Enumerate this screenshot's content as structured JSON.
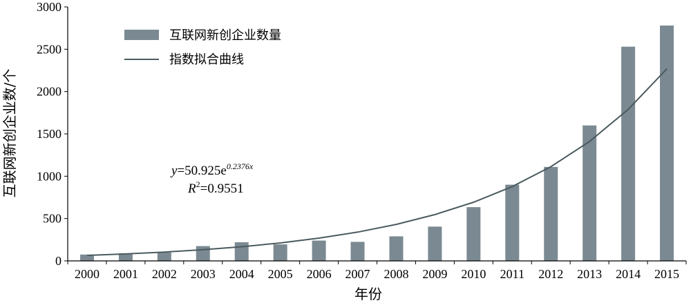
{
  "chart_data": {
    "type": "bar",
    "title": "",
    "xlabel": "年份",
    "ylabel": "互联网新创企业数/个",
    "ylim": [
      0,
      3000
    ],
    "yticks": [
      0,
      500,
      1000,
      1500,
      2000,
      2500,
      3000
    ],
    "categories": [
      "2000",
      "2001",
      "2002",
      "2003",
      "2004",
      "2005",
      "2006",
      "2007",
      "2008",
      "2009",
      "2010",
      "2011",
      "2012",
      "2013",
      "2014",
      "2015"
    ],
    "series": [
      {
        "name": "互联网新创企业数量",
        "type": "bar",
        "color": "#7b8a92",
        "values": [
          75,
          90,
          100,
          175,
          220,
          195,
          240,
          225,
          290,
          405,
          635,
          900,
          1110,
          1600,
          2530,
          2780
        ]
      },
      {
        "name": "指数拟合曲线",
        "type": "line",
        "color": "#4a5a5e",
        "values": [
          65,
          82,
          104,
          132,
          167,
          212,
          269,
          340,
          431,
          547,
          693,
          878,
          1113,
          1411,
          1789,
          2268
        ]
      }
    ],
    "annotation": {
      "equation_lhs": "y",
      "equation_rhs": "=50.925e",
      "equation_exponent": "0.2376x",
      "r2_lhs": "R",
      "r2_sup": "2",
      "r2_rhs": "=0.9551"
    },
    "grid": false,
    "legend": "top-left"
  }
}
